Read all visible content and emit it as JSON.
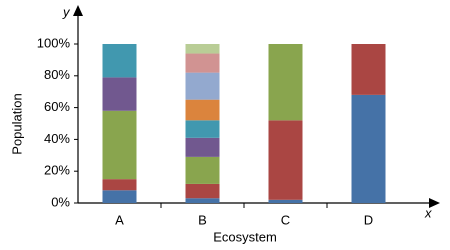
{
  "chart_data": {
    "type": "stacked-bar",
    "y_label": "Population",
    "x_label": "Ecosystem",
    "x_axis_symbol": "x",
    "y_axis_symbol": "y",
    "categories": [
      "A",
      "B",
      "C",
      "D"
    ],
    "series": [
      {
        "color": "#4572a7",
        "values": [
          8,
          3,
          2,
          68
        ]
      },
      {
        "color": "#aa4643",
        "values": [
          7,
          9,
          50,
          32
        ]
      },
      {
        "color": "#89a54e",
        "values": [
          43,
          17,
          48,
          0
        ]
      },
      {
        "color": "#71588f",
        "values": [
          21,
          12,
          0,
          0
        ]
      },
      {
        "color": "#4198af",
        "values": [
          21,
          11,
          0,
          0
        ]
      },
      {
        "color": "#db843d",
        "values": [
          0,
          13,
          0,
          0
        ]
      },
      {
        "color": "#93a9cf",
        "values": [
          0,
          17,
          0,
          0
        ]
      },
      {
        "color": "#d19392",
        "values": [
          0,
          12,
          0,
          0
        ]
      },
      {
        "color": "#b9cd96",
        "values": [
          0,
          6,
          0,
          0
        ]
      }
    ],
    "ylim": [
      0,
      100
    ],
    "yticks": [
      {
        "value": 0,
        "label": "0%"
      },
      {
        "value": 20,
        "label": "20%"
      },
      {
        "value": 40,
        "label": "40%"
      },
      {
        "value": 60,
        "label": "60%"
      },
      {
        "value": 80,
        "label": "80%"
      },
      {
        "value": 100,
        "label": "100%"
      }
    ],
    "grid": false
  }
}
